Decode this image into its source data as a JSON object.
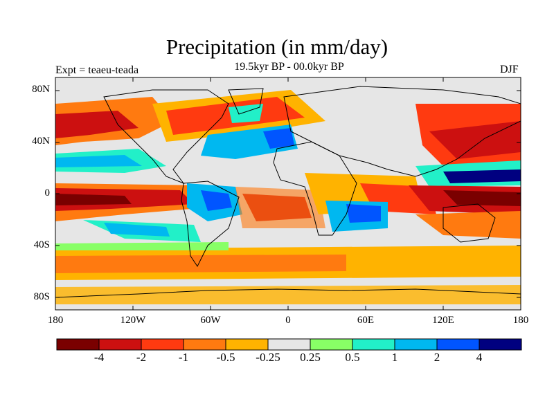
{
  "title": "Precipitation (in mm/day)",
  "subtitle": "19.5kyr BP - 00.0kyr BP",
  "experiment": "Expt = teaeu-teada",
  "season": "DJF",
  "map": {
    "lat_ticks": [
      "80N",
      "40N",
      "0",
      "40S",
      "80S"
    ],
    "lon_ticks": [
      "180",
      "120W",
      "60W",
      "0",
      "60E",
      "120E",
      "180"
    ],
    "projection": "cylindrical equidistant",
    "background_color": "#e6e6e6"
  },
  "colorbar": {
    "colors": [
      "#7a0000",
      "#cc1010",
      "#ff3a10",
      "#ff7a10",
      "#ffb300",
      "#e6e6e6",
      "#88ff66",
      "#22f0c8",
      "#00b8f0",
      "#0055ff",
      "#000080"
    ],
    "labels": [
      "-4",
      "-2",
      "-1",
      "-0.5",
      "-0.25",
      "0.25",
      "0.5",
      "1",
      "2",
      "4"
    ]
  }
}
